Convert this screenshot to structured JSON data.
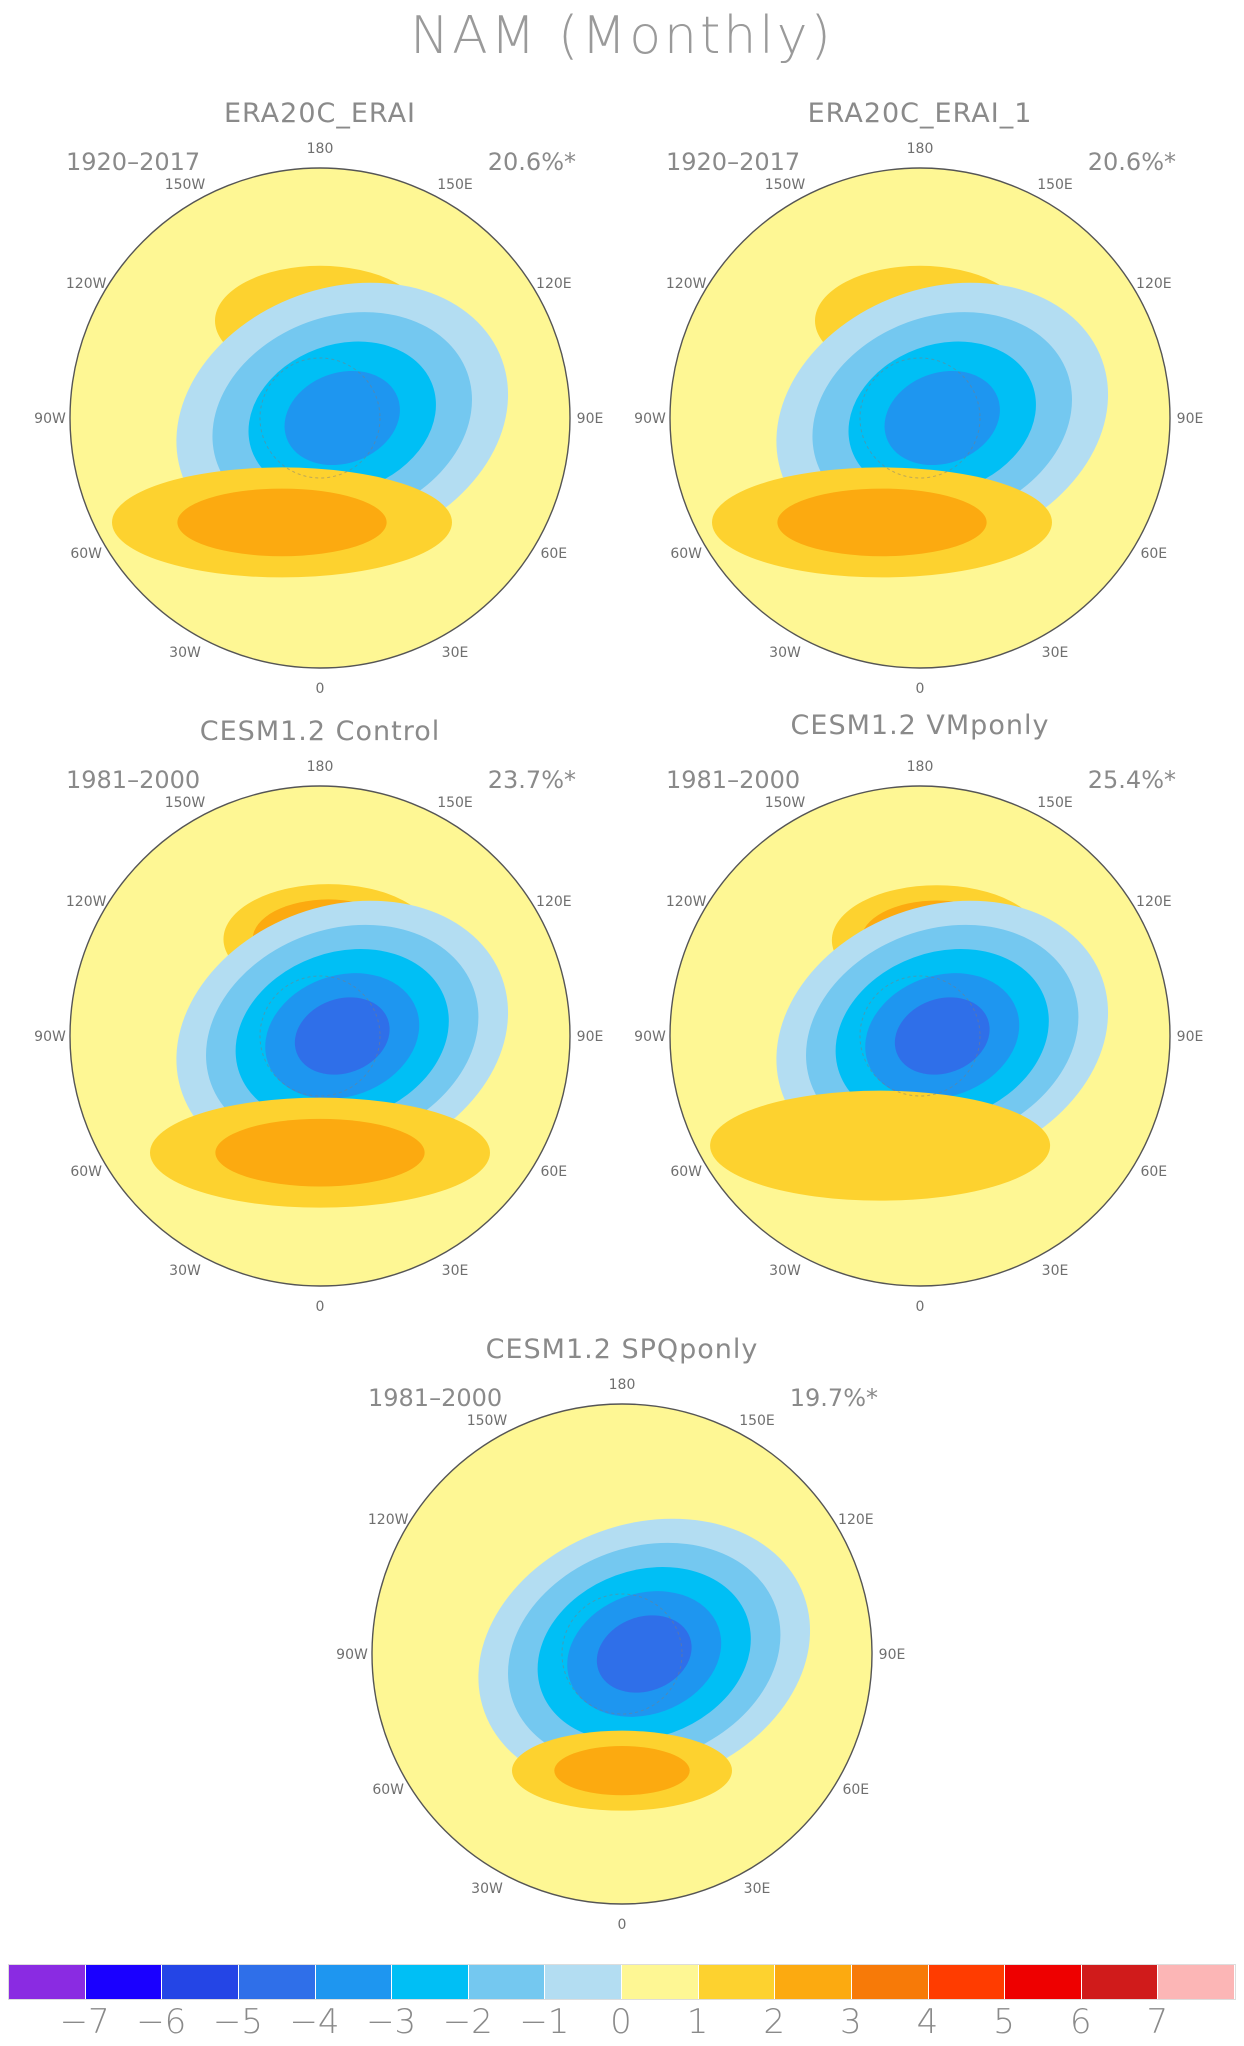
{
  "figure": {
    "title": "NAM (Monthly)"
  },
  "panels": [
    {
      "title": "ERA20C_ERAI",
      "period": "1920–2017",
      "variance": "20.6%*",
      "slot": "top-left",
      "features": [
        {
          "kind": "pos",
          "lon": 180,
          "colat": 35,
          "size": "medium",
          "level": 1
        },
        {
          "kind": "neg",
          "lon": 90,
          "colat": 8,
          "size": "large",
          "level": -4
        },
        {
          "kind": "pos",
          "lon": -20,
          "colat": 40,
          "size": "band",
          "level": 2
        }
      ]
    },
    {
      "title": "ERA20C_ERAI_1",
      "period": "1920–2017",
      "variance": "20.6%*",
      "slot": "top-right",
      "features": [
        {
          "kind": "pos",
          "lon": 180,
          "colat": 35,
          "size": "medium",
          "level": 1
        },
        {
          "kind": "neg",
          "lon": 90,
          "colat": 8,
          "size": "large",
          "level": -4
        },
        {
          "kind": "pos",
          "lon": -20,
          "colat": 40,
          "size": "band",
          "level": 2
        }
      ]
    },
    {
      "title": "CESM1.2 Control",
      "period": "1981–2000",
      "variance": "23.7%*",
      "slot": "mid-left",
      "features": [
        {
          "kind": "pos",
          "lon": 175,
          "colat": 35,
          "size": "medium",
          "level": 3
        },
        {
          "kind": "neg",
          "lon": 90,
          "colat": 8,
          "size": "large",
          "level": -5
        },
        {
          "kind": "pos",
          "lon": 0,
          "colat": 42,
          "size": "band",
          "level": 2
        }
      ]
    },
    {
      "title": "CESM1.2 VMponly",
      "period": "1981–2000",
      "variance": "25.4%*",
      "slot": "mid-right",
      "features": [
        {
          "kind": "pos",
          "lon": 170,
          "colat": 35,
          "size": "medium",
          "level": 3
        },
        {
          "kind": "neg",
          "lon": 90,
          "colat": 8,
          "size": "large",
          "level": -5
        },
        {
          "kind": "pos",
          "lon": -20,
          "colat": 42,
          "size": "band",
          "level": 1
        }
      ]
    },
    {
      "title": "CESM1.2 SPQponly",
      "period": "1981–2000",
      "variance": "19.7%*",
      "slot": "bottom-center",
      "features": [
        {
          "kind": "neg",
          "lon": 90,
          "colat": 8,
          "size": "large",
          "level": -5
        },
        {
          "kind": "pos",
          "lon": 0,
          "colat": 42,
          "size": "small",
          "level": 2
        }
      ]
    }
  ],
  "map": {
    "projection": "north polar stereographic",
    "longitude_labels": [
      {
        "lon": 180,
        "text": "180"
      },
      {
        "lon": 150,
        "text": "150E"
      },
      {
        "lon": 120,
        "text": "120E"
      },
      {
        "lon": 90,
        "text": "90E"
      },
      {
        "lon": 60,
        "text": "60E"
      },
      {
        "lon": 30,
        "text": "30E"
      },
      {
        "lon": 0,
        "text": "0"
      },
      {
        "lon": -30,
        "text": "30W"
      },
      {
        "lon": -60,
        "text": "60W"
      },
      {
        "lon": -90,
        "text": "90W"
      },
      {
        "lon": -120,
        "text": "120W"
      },
      {
        "lon": -150,
        "text": "150W"
      }
    ]
  },
  "colorbar": {
    "colors": [
      "#8a2be2",
      "#1a00ff",
      "#2445e6",
      "#2f6fe9",
      "#1e96f0",
      "#00bff5",
      "#74c8f0",
      "#b3ddf2",
      "#fef794",
      "#fdd22f",
      "#fcaa10",
      "#f77a08",
      "#ff3c00",
      "#ee0000",
      "#d01b1b",
      "#fcb6b6"
    ],
    "labels": [
      "−7",
      "−6",
      "−5",
      "−4",
      "−3",
      "−2",
      "−1",
      "0",
      "1",
      "2",
      "3",
      "4",
      "5",
      "6",
      "7"
    ]
  }
}
